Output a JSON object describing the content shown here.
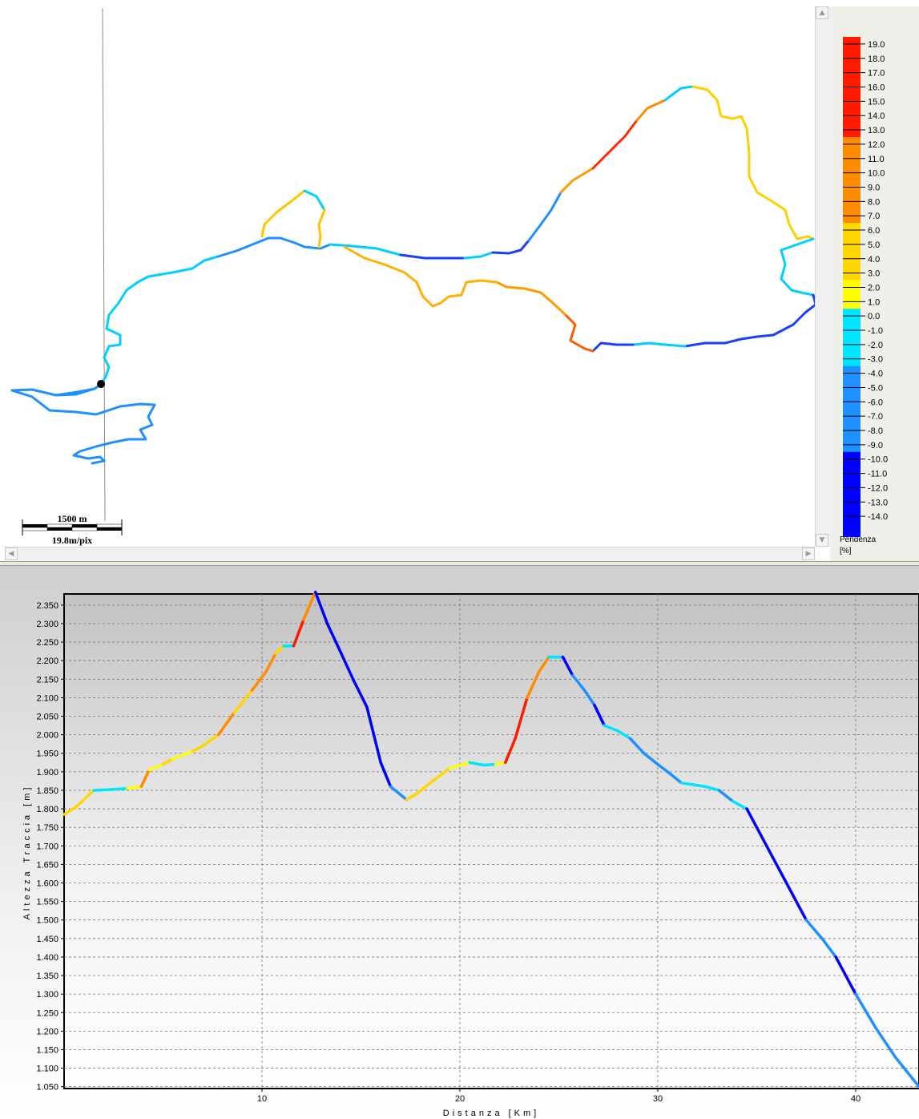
{
  "map": {
    "scale_distance": "1500 m",
    "scale_resolution": "19.8m/pix"
  },
  "legend": {
    "caption_line1": "Pendenza",
    "caption_line2": "[%]",
    "ticks": [
      "19.0",
      "18.0",
      "17.0",
      "16.0",
      "15.0",
      "14.0",
      "13.0",
      "12.0",
      "11.0",
      "10.0",
      "9.0",
      "8.0",
      "7.0",
      "6.0",
      "5.0",
      "4.0",
      "3.0",
      "2.0",
      "1.0",
      "0.0",
      "-1.0",
      "-2.0",
      "-3.0",
      "-4.0",
      "-5.0",
      "-6.0",
      "-7.0",
      "-8.0",
      "-9.0",
      "-10.0",
      "-11.0",
      "-12.0",
      "-13.0",
      "-14.0"
    ],
    "colors": {
      "steep_up": "#ff1a00",
      "up": "#ff8c00",
      "gentle_up": "#ffd700",
      "flat_up": "#ffff00",
      "flat_down": "#00e5ff",
      "down": "#1e90ff",
      "steep_down": "#0000ff"
    }
  },
  "chart_data": {
    "type": "line",
    "xlabel": "Distanza [Km]",
    "ylabel": "Altezza Traccia [m]",
    "xlim": [
      0,
      43.2
    ],
    "ylim": [
      1045,
      2380
    ],
    "x_ticks": [
      10,
      20,
      30,
      40
    ],
    "y_ticks": [
      1050,
      1100,
      1150,
      1200,
      1250,
      1300,
      1350,
      1400,
      1450,
      1500,
      1550,
      1600,
      1650,
      1700,
      1750,
      1800,
      1850,
      1900,
      1950,
      2000,
      2050,
      2100,
      2150,
      2200,
      2250,
      2300,
      2350
    ],
    "grid": true,
    "colored_by": "Pendenza [%]",
    "x": [
      0,
      0.6,
      1.2,
      1.5,
      2.4,
      3.2,
      3.9,
      4.3,
      5.0,
      5.5,
      6.0,
      6.5,
      7.0,
      7.8,
      8.6,
      9.5,
      10.2,
      10.7,
      11.1,
      11.6,
      12.1,
      12.5,
      12.7,
      13.3,
      14.0,
      14.6,
      15.3,
      16.0,
      16.5,
      17.3,
      17.8,
      18.5,
      19.5,
      20.5,
      21.2,
      21.8,
      22.3,
      22.8,
      23.4,
      24.0,
      24.5,
      25.2,
      25.7,
      26.3,
      26.8,
      27.3,
      28.0,
      28.6,
      29.3,
      30.0,
      30.5,
      31.2,
      31.8,
      32.4,
      33.1,
      33.8,
      34.5,
      35.5,
      36.5,
      37.5,
      38.3,
      39.0,
      40.0,
      41.0,
      42.0,
      43.2
    ],
    "y": [
      1785,
      1805,
      1835,
      1850,
      1852,
      1855,
      1860,
      1905,
      1920,
      1935,
      1945,
      1955,
      1970,
      2000,
      2060,
      2120,
      2170,
      2220,
      2240,
      2240,
      2310,
      2360,
      2385,
      2300,
      2220,
      2150,
      2075,
      1925,
      1860,
      1825,
      1840,
      1870,
      1910,
      1925,
      1918,
      1920,
      1925,
      1990,
      2100,
      2170,
      2210,
      2210,
      2160,
      2120,
      2080,
      2025,
      2010,
      1990,
      1950,
      1920,
      1900,
      1870,
      1865,
      1860,
      1850,
      1820,
      1800,
      1700,
      1600,
      1500,
      1450,
      1400,
      1300,
      1210,
      1130,
      1050
    ]
  }
}
